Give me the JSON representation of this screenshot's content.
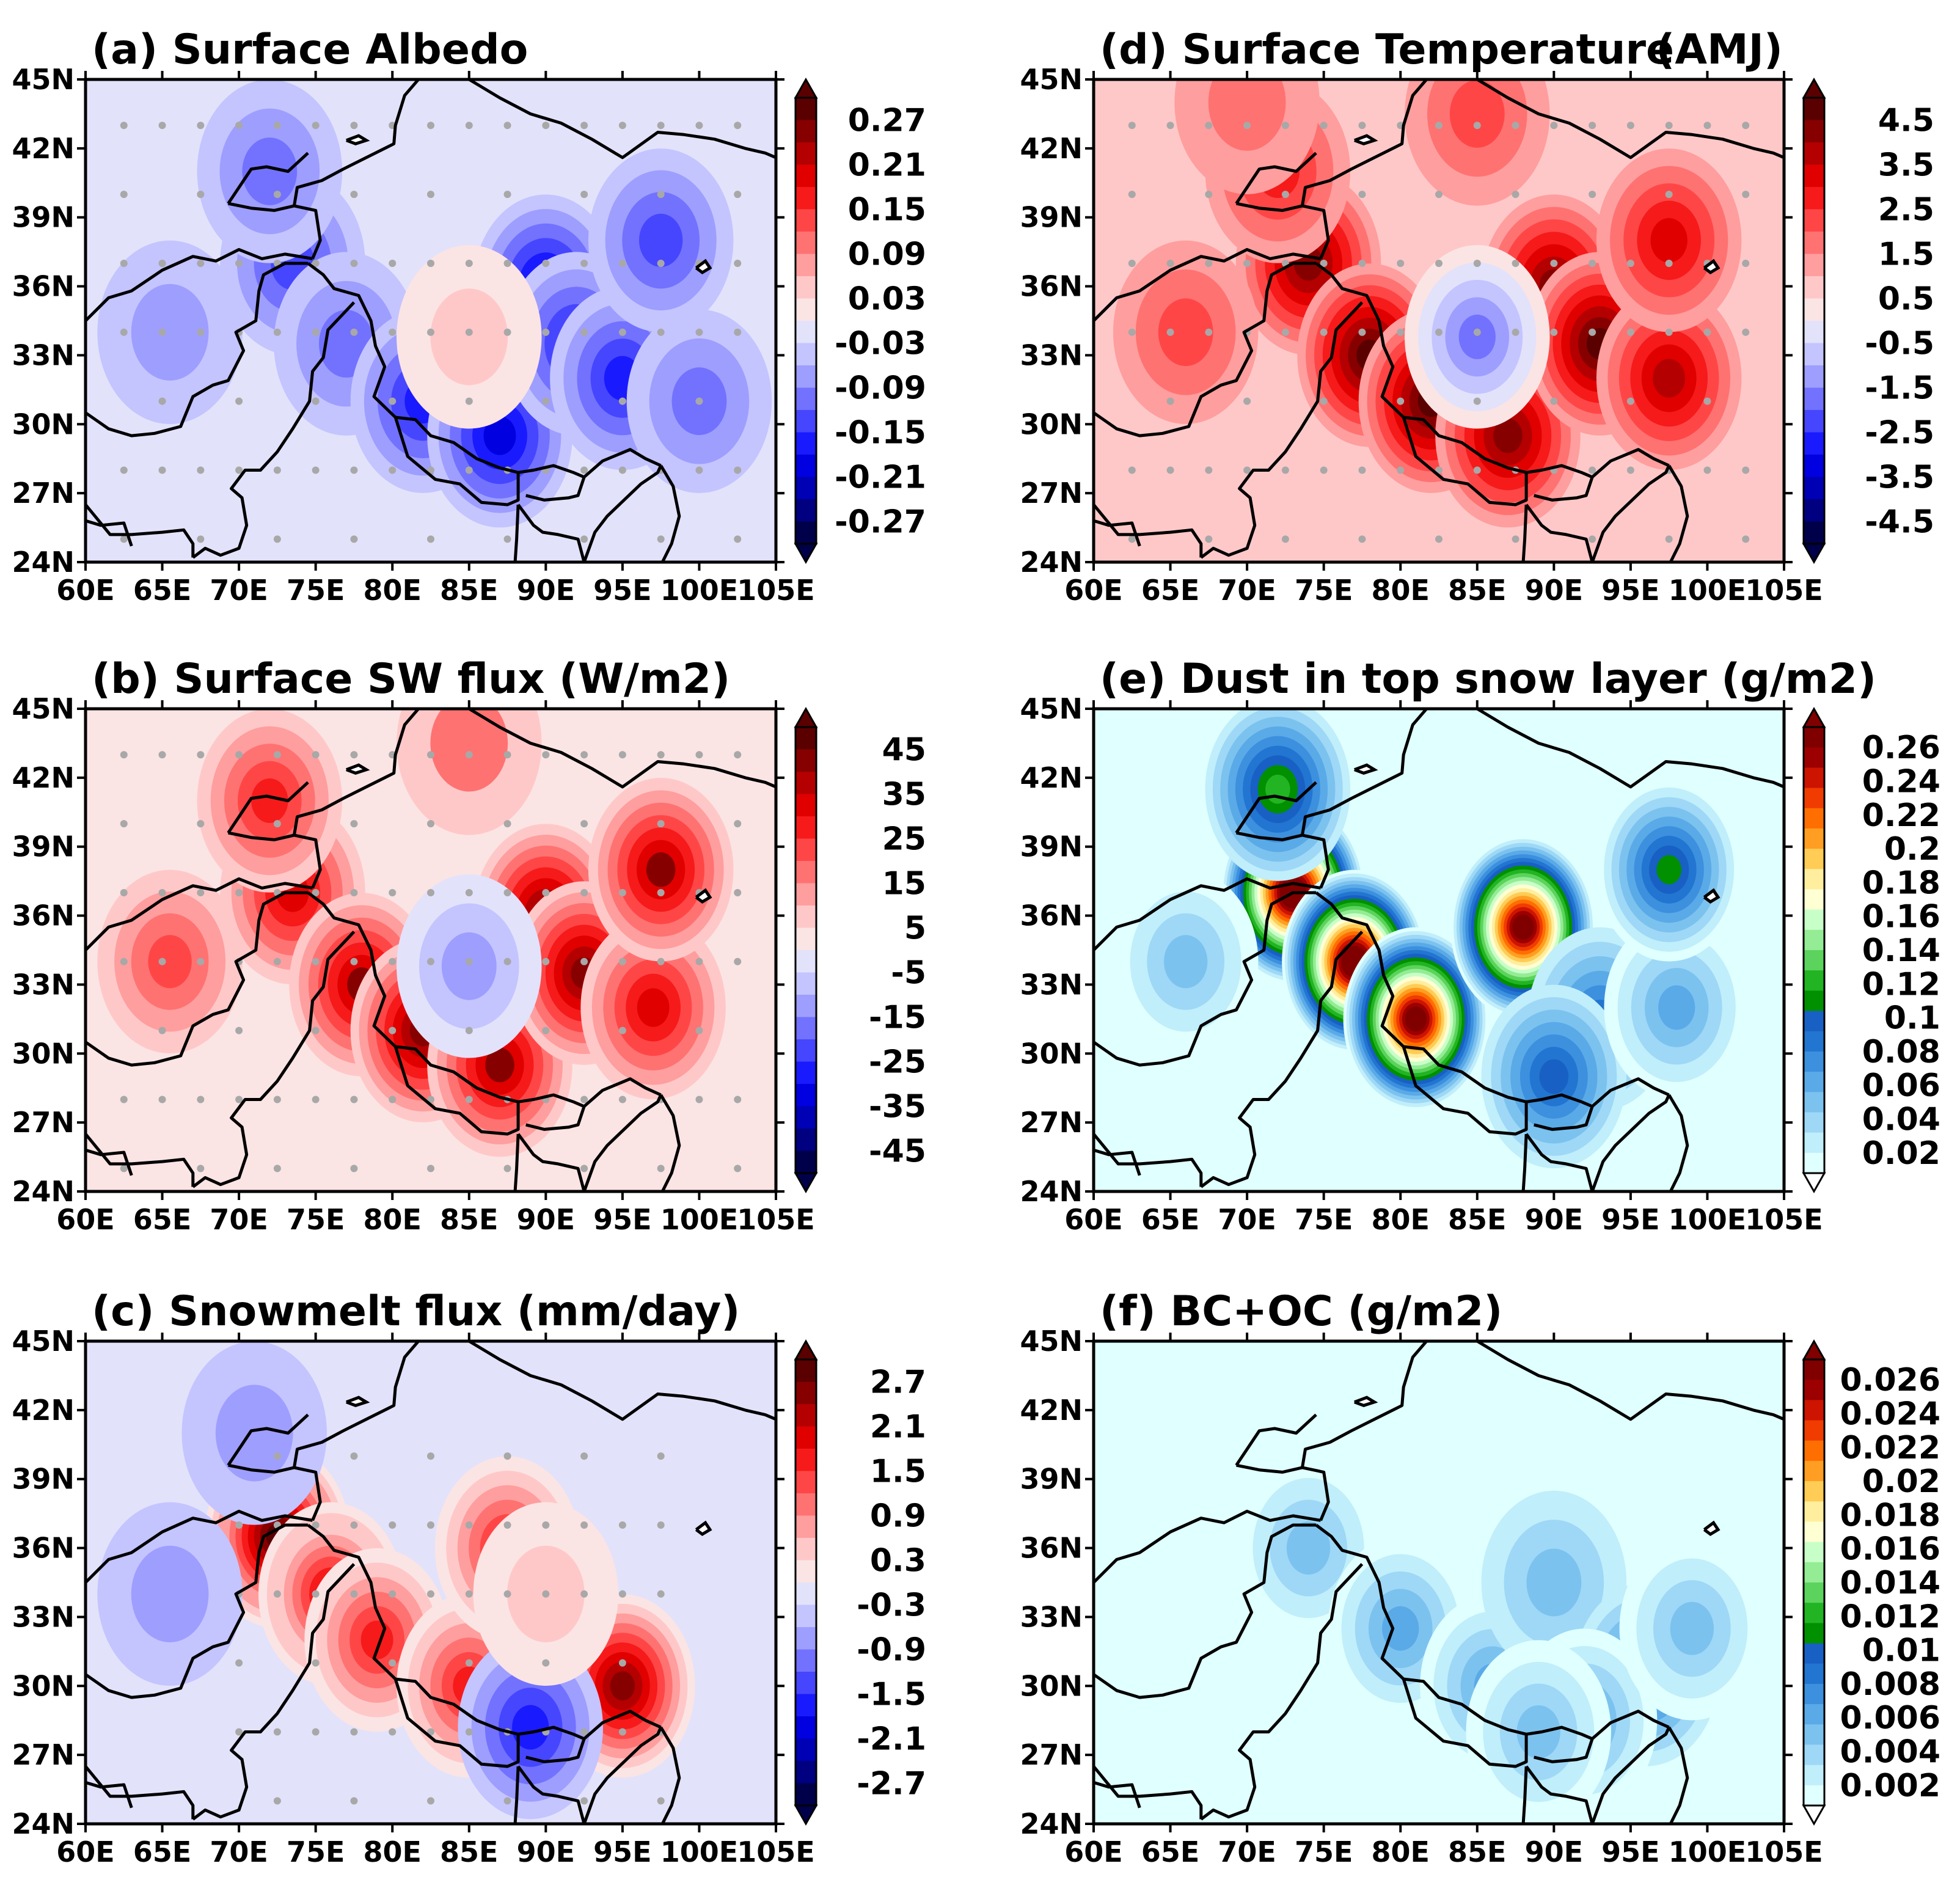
{
  "chart_data": [
    {
      "id": "a",
      "type": "heatmap",
      "title": "(a) Surface Albedo",
      "xticks": [
        "60E",
        "65E",
        "70E",
        "75E",
        "80E",
        "85E",
        "90E",
        "95E",
        "100E",
        "105E"
      ],
      "yticks": [
        "45N",
        "42N",
        "39N",
        "36N",
        "33N",
        "30N",
        "27N",
        "24N"
      ],
      "xlim": [
        60,
        105
      ],
      "ylim": [
        24,
        45
      ],
      "colorbar_labels": [
        "0.27",
        "0.21",
        "0.15",
        "0.09",
        "0.03",
        "-0.03",
        "-0.09",
        "-0.15",
        "-0.21",
        "-0.27"
      ],
      "scale": "diverging",
      "vmin": -0.3,
      "vmax": 0.3,
      "background_value": -0.02,
      "blobs": [
        {
          "lon": 73.5,
          "lat": 37,
          "value": -0.14
        },
        {
          "lon": 72,
          "lat": 41,
          "value": -0.1
        },
        {
          "lon": 65.5,
          "lat": 34,
          "value": -0.08
        },
        {
          "lon": 77,
          "lat": 33.5,
          "value": -0.12
        },
        {
          "lon": 82,
          "lat": 31,
          "value": -0.17
        },
        {
          "lon": 87,
          "lat": 29.5,
          "value": -0.2
        },
        {
          "lon": 90,
          "lat": 36,
          "value": -0.2
        },
        {
          "lon": 92,
          "lat": 33.5,
          "value": -0.18
        },
        {
          "lon": 95,
          "lat": 32,
          "value": -0.16
        },
        {
          "lon": 97.5,
          "lat": 38,
          "value": -0.15
        },
        {
          "lon": 85,
          "lat": 33.8,
          "value": 0.05
        },
        {
          "lon": 100,
          "lat": 31,
          "value": -0.1
        }
      ]
    },
    {
      "id": "b",
      "type": "heatmap",
      "title": "(b) Surface SW flux (W/m2)",
      "xticks": [
        "60E",
        "65E",
        "70E",
        "75E",
        "80E",
        "85E",
        "90E",
        "95E",
        "100E",
        "105E"
      ],
      "yticks": [
        "45N",
        "42N",
        "39N",
        "36N",
        "33N",
        "30N",
        "27N",
        "24N"
      ],
      "xlim": [
        60,
        105
      ],
      "ylim": [
        24,
        45
      ],
      "colorbar_labels": [
        "45",
        "35",
        "25",
        "15",
        "5",
        "-5",
        "-15",
        "-25",
        "-35",
        "-45"
      ],
      "scale": "diverging",
      "vmin": -50,
      "vmax": 50,
      "background_value": 3,
      "blobs": [
        {
          "lon": 73.5,
          "lat": 37,
          "value": 34
        },
        {
          "lon": 72,
          "lat": 41,
          "value": 26
        },
        {
          "lon": 65.5,
          "lat": 34,
          "value": 24
        },
        {
          "lon": 78,
          "lat": 33,
          "value": 40
        },
        {
          "lon": 82,
          "lat": 31,
          "value": 44
        },
        {
          "lon": 87,
          "lat": 29.5,
          "value": 40
        },
        {
          "lon": 90,
          "lat": 36,
          "value": 42
        },
        {
          "lon": 92.5,
          "lat": 33.5,
          "value": 44
        },
        {
          "lon": 97,
          "lat": 32,
          "value": 34
        },
        {
          "lon": 97.5,
          "lat": 38,
          "value": 40
        },
        {
          "lon": 85,
          "lat": 33.8,
          "value": -14
        },
        {
          "lon": 85,
          "lat": 43.5,
          "value": 15
        }
      ]
    },
    {
      "id": "c",
      "type": "heatmap",
      "title": "(c) Snowmelt flux (mm/day)",
      "xticks": [
        "60E",
        "65E",
        "70E",
        "75E",
        "80E",
        "85E",
        "90E",
        "95E",
        "100E",
        "105E"
      ],
      "yticks": [
        "45N",
        "42N",
        "39N",
        "36N",
        "33N",
        "30N",
        "27N",
        "24N"
      ],
      "xlim": [
        60,
        105
      ],
      "ylim": [
        24,
        45
      ],
      "colorbar_labels": [
        "2.7",
        "2.1",
        "1.5",
        "0.9",
        "0.3",
        "-0.3",
        "-0.9",
        "-1.5",
        "-2.1",
        "-2.7"
      ],
      "scale": "diverging",
      "vmin": -3,
      "vmax": 3,
      "background_value": -0.25,
      "blobs": [
        {
          "lon": 72.5,
          "lat": 36.5,
          "value": 2.9
        },
        {
          "lon": 76,
          "lat": 34,
          "value": 2.0
        },
        {
          "lon": 79,
          "lat": 32,
          "value": 1.5
        },
        {
          "lon": 85,
          "lat": 30,
          "value": 1.6
        },
        {
          "lon": 87.5,
          "lat": 36,
          "value": 1.5
        },
        {
          "lon": 95,
          "lat": 30,
          "value": 2.5
        },
        {
          "lon": 89,
          "lat": 28.2,
          "value": -1.7
        },
        {
          "lon": 71,
          "lat": 41,
          "value": -0.9
        },
        {
          "lon": 65.5,
          "lat": 34,
          "value": -0.9
        },
        {
          "lon": 90,
          "lat": 34,
          "value": 0.4
        }
      ]
    },
    {
      "id": "d",
      "type": "heatmap",
      "title": "(d) Surface Temperature",
      "title_right": "(AMJ)",
      "xticks": [
        "60E",
        "65E",
        "70E",
        "75E",
        "80E",
        "85E",
        "90E",
        "95E",
        "100E",
        "105E"
      ],
      "yticks": [
        "45N",
        "42N",
        "39N",
        "36N",
        "33N",
        "30N",
        "27N",
        "24N"
      ],
      "xlim": [
        60,
        105
      ],
      "ylim": [
        24,
        45
      ],
      "colorbar_labels": [
        "4.5",
        "3.5",
        "2.5",
        "1.5",
        "0.5",
        "-0.5",
        "-1.5",
        "-2.5",
        "-3.5",
        "-4.5"
      ],
      "scale": "diverging",
      "vmin": -5,
      "vmax": 5,
      "background_value": 0.8,
      "blobs": [
        {
          "lon": 74,
          "lat": 37,
          "value": 4.4
        },
        {
          "lon": 72,
          "lat": 41,
          "value": 2.6
        },
        {
          "lon": 66,
          "lat": 34,
          "value": 2.2
        },
        {
          "lon": 78,
          "lat": 33,
          "value": 4.6
        },
        {
          "lon": 82,
          "lat": 31,
          "value": 4.6
        },
        {
          "lon": 87,
          "lat": 29.5,
          "value": 4.4
        },
        {
          "lon": 90,
          "lat": 36,
          "value": 4.4
        },
        {
          "lon": 93,
          "lat": 33.5,
          "value": 4.8
        },
        {
          "lon": 97.5,
          "lat": 32,
          "value": 3.6
        },
        {
          "lon": 97.5,
          "lat": 38,
          "value": 3.2
        },
        {
          "lon": 85,
          "lat": 33.8,
          "value": -1.6
        },
        {
          "lon": 85,
          "lat": 43.5,
          "value": 2.4
        },
        {
          "lon": 70,
          "lat": 44,
          "value": 1.8
        }
      ]
    },
    {
      "id": "e",
      "type": "heatmap",
      "title": "(e) Dust in top snow layer (g/m2)",
      "xticks": [
        "60E",
        "65E",
        "70E",
        "75E",
        "80E",
        "85E",
        "90E",
        "95E",
        "100E",
        "105E"
      ],
      "yticks": [
        "45N",
        "42N",
        "39N",
        "36N",
        "33N",
        "30N",
        "27N",
        "24N"
      ],
      "xlim": [
        60,
        105
      ],
      "ylim": [
        24,
        45
      ],
      "colorbar_labels": [
        "0.26",
        "0.24",
        "0.22",
        "0.2",
        "0.18",
        "0.16",
        "0.14",
        "0.12",
        "0.1",
        "0.08",
        "0.06",
        "0.04",
        "0.02"
      ],
      "scale": "sequential",
      "vmin": 0,
      "vmax": 0.28,
      "background_value": 0.0,
      "blobs": [
        {
          "lon": 73,
          "lat": 37,
          "value": 0.3
        },
        {
          "lon": 77,
          "lat": 34,
          "value": 0.3
        },
        {
          "lon": 81,
          "lat": 31.5,
          "value": 0.29
        },
        {
          "lon": 88,
          "lat": 35.5,
          "value": 0.29
        },
        {
          "lon": 72,
          "lat": 41.5,
          "value": 0.12
        },
        {
          "lon": 93,
          "lat": 31.5,
          "value": 0.08
        },
        {
          "lon": 90,
          "lat": 29,
          "value": 0.09
        },
        {
          "lon": 98,
          "lat": 32,
          "value": 0.06
        },
        {
          "lon": 66,
          "lat": 34,
          "value": 0.05
        },
        {
          "lon": 97.5,
          "lat": 38,
          "value": 0.11
        }
      ]
    },
    {
      "id": "f",
      "type": "heatmap",
      "title": "(f) BC+OC (g/m2)",
      "xticks": [
        "60E",
        "65E",
        "70E",
        "75E",
        "80E",
        "85E",
        "90E",
        "95E",
        "100E",
        "105E"
      ],
      "yticks": [
        "45N",
        "42N",
        "39N",
        "36N",
        "33N",
        "30N",
        "27N",
        "24N"
      ],
      "xlim": [
        60,
        105
      ],
      "ylim": [
        24,
        45
      ],
      "colorbar_labels": [
        "0.026",
        "0.024",
        "0.022",
        "0.02",
        "0.018",
        "0.016",
        "0.014",
        "0.012",
        "0.01",
        "0.008",
        "0.006",
        "0.004",
        "0.002"
      ],
      "scale": "sequential",
      "vmin": 0,
      "vmax": 0.028,
      "background_value": 0.0,
      "blobs": [
        {
          "lon": 74,
          "lat": 36,
          "value": 0.005
        },
        {
          "lon": 80,
          "lat": 32.5,
          "value": 0.006
        },
        {
          "lon": 86,
          "lat": 30,
          "value": 0.006
        },
        {
          "lon": 90,
          "lat": 34.5,
          "value": 0.004
        },
        {
          "lon": 96,
          "lat": 30.5,
          "value": 0.008
        },
        {
          "lon": 92,
          "lat": 28.5,
          "value": 0.006
        },
        {
          "lon": 99,
          "lat": 32.5,
          "value": 0.005
        },
        {
          "lon": 89,
          "lat": 28,
          "value": 0.005
        }
      ]
    }
  ],
  "map_features": {
    "stipple_lon_step": 2.5,
    "stipple_lat_step": 3
  }
}
